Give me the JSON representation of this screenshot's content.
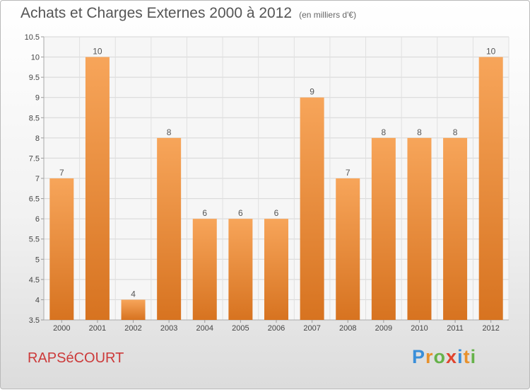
{
  "title": "Achats et Charges Externes 2000 à 2012",
  "unit_label": "(en milliers d'€)",
  "commune": "RAPSéCOURT",
  "logo": {
    "letters": [
      "P",
      "r",
      "o",
      "x",
      "i",
      "t",
      "i"
    ],
    "colors": [
      "#3a8fd9",
      "#e8912c",
      "#66b24a",
      "#e0442f",
      "#3a8fd9",
      "#e8912c",
      "#66b24a"
    ]
  },
  "colors": {
    "bar_light": "#f7a55a",
    "bar_dark": "#d77320",
    "commune_text": "#cc3a3a"
  },
  "chart_data": {
    "type": "bar",
    "categories": [
      "2000",
      "2001",
      "2002",
      "2003",
      "2004",
      "2005",
      "2006",
      "2007",
      "2008",
      "2009",
      "2010",
      "2011",
      "2012"
    ],
    "values": [
      7,
      10,
      4,
      8,
      6,
      6,
      6,
      9,
      7,
      8,
      8,
      8,
      10
    ],
    "ylim": [
      3.5,
      10.5
    ],
    "yticks": [
      "3.5",
      "4",
      "4.5",
      "5",
      "5.5",
      "6",
      "6.5",
      "7",
      "7.5",
      "8",
      "8.5",
      "9",
      "9.5",
      "10",
      "10.5"
    ],
    "grid": true,
    "xlabel": "",
    "ylabel": ""
  }
}
